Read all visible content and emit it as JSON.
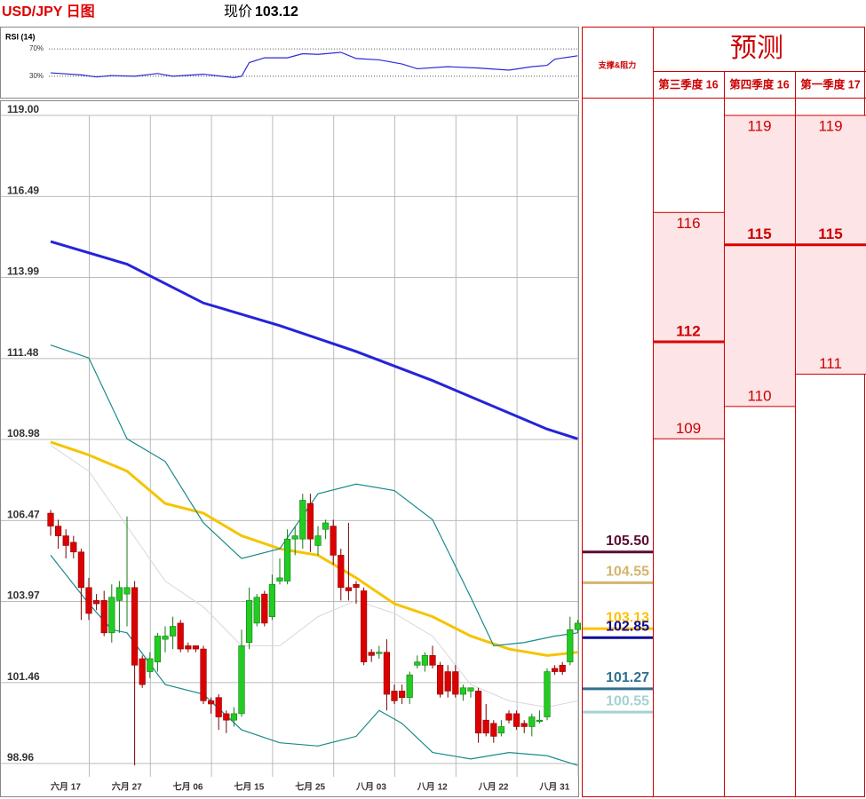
{
  "header": {
    "title": "USD/JPY 日图",
    "price_label": "现价",
    "price": "103.12"
  },
  "chart_data": [
    {
      "type": "candlestick",
      "categories": [
        "六月 17",
        null,
        null,
        null,
        null,
        null,
        null,
        null,
        "六月 27",
        null,
        null,
        null,
        null,
        null,
        null,
        null,
        "七月 06",
        null,
        null,
        null,
        null,
        null,
        null,
        null,
        "七月 15",
        null,
        null,
        null,
        null,
        null,
        null,
        null,
        "七月 25",
        null,
        null,
        null,
        null,
        null,
        null,
        null,
        "八月 03",
        null,
        null,
        null,
        null,
        null,
        null,
        null,
        "八月 12",
        null,
        null,
        null,
        null,
        null,
        null,
        null,
        "八月 22",
        null,
        null,
        null,
        null,
        null,
        null,
        null,
        "八月 31",
        null,
        null,
        null,
        null,
        null
      ],
      "open": [
        106.7,
        106.3,
        106.0,
        105.8,
        105.5,
        104.4,
        104.0,
        104.0,
        103.0,
        104.0,
        104.2,
        104.4,
        102.2,
        101.8,
        102.1,
        102.8,
        102.9,
        103.3,
        102.6,
        102.6,
        102.5,
        100.9,
        101.0,
        100.5,
        100.3,
        100.5,
        102.7,
        103.3,
        104.2,
        103.5,
        104.6,
        104.6,
        105.9,
        105.9,
        107.0,
        105.7,
        106.2,
        106.3,
        105.4,
        104.4,
        104.5,
        104.3,
        102.4,
        102.4,
        102.4,
        101.2,
        101.2,
        101.0,
        102.0,
        102.0,
        102.3,
        102.0,
        101.8,
        101.8,
        101.1,
        101.2,
        101.2,
        100.3,
        100.2,
        99.9,
        100.5,
        100.5,
        100.2,
        100.1,
        100.3,
        100.4,
        101.9,
        102.0,
        102.1,
        103.1
      ],
      "high": [
        106.8,
        106.5,
        106.2,
        106.0,
        105.6,
        104.7,
        104.2,
        104.3,
        104.5,
        104.6,
        106.6,
        104.6,
        102.3,
        102.4,
        103.0,
        103.2,
        103.5,
        103.4,
        102.7,
        102.6,
        102.6,
        101.0,
        101.1,
        100.6,
        100.7,
        103.1,
        104.4,
        104.2,
        104.3,
        104.8,
        105.3,
        106.2,
        106.3,
        107.3,
        107.3,
        106.3,
        106.5,
        106.5,
        105.6,
        106.4,
        104.6,
        104.4,
        102.5,
        102.6,
        102.8,
        101.4,
        101.4,
        101.8,
        102.3,
        102.4,
        102.6,
        102.1,
        102.0,
        102.0,
        101.4,
        101.3,
        101.3,
        100.8,
        100.3,
        100.3,
        100.6,
        100.6,
        100.3,
        100.5,
        100.6,
        101.9,
        102.0,
        102.1,
        103.5,
        103.4
      ],
      "low": [
        106.0,
        105.6,
        105.3,
        105.3,
        103.4,
        103.4,
        103.7,
        102.9,
        102.7,
        103.0,
        103.2,
        98.9,
        101.3,
        101.6,
        101.8,
        102.4,
        102.5,
        102.4,
        102.4,
        102.4,
        100.8,
        100.5,
        100.0,
        99.9,
        100.1,
        100.4,
        102.5,
        103.2,
        103.2,
        103.4,
        104.5,
        104.5,
        105.4,
        105.6,
        105.5,
        105.4,
        105.9,
        105.1,
        104.0,
        104.0,
        103.9,
        102.0,
        102.1,
        102.2,
        100.6,
        100.8,
        100.8,
        100.8,
        101.9,
        101.8,
        101.9,
        101.0,
        101.0,
        101.0,
        100.9,
        101.0,
        99.6,
        99.8,
        99.6,
        99.8,
        100.2,
        100.0,
        99.9,
        99.8,
        100.2,
        100.3,
        101.7,
        101.7,
        102.0,
        103.0
      ],
      "close": [
        106.3,
        106.0,
        105.7,
        105.5,
        104.4,
        103.6,
        103.9,
        103.0,
        104.1,
        104.4,
        104.4,
        102.0,
        101.4,
        102.2,
        102.9,
        102.9,
        103.2,
        102.5,
        102.5,
        102.5,
        100.9,
        100.8,
        100.4,
        100.3,
        100.5,
        102.6,
        104.0,
        104.1,
        103.3,
        104.5,
        104.7,
        105.9,
        106.0,
        107.1,
        105.9,
        106.0,
        106.4,
        105.4,
        104.4,
        104.3,
        104.4,
        102.1,
        102.3,
        102.4,
        101.1,
        100.9,
        101.0,
        101.7,
        102.1,
        102.3,
        102.0,
        101.1,
        101.2,
        101.1,
        101.3,
        101.3,
        99.9,
        99.9,
        99.8,
        100.1,
        100.3,
        100.1,
        100.1,
        100.4,
        100.3,
        101.8,
        101.8,
        101.8,
        103.1,
        103.3
      ],
      "up_color": "#22cc22",
      "down_color": "#dd0000",
      "ylim": [
        98.96,
        119
      ],
      "yticks": [
        98.96,
        101.46,
        103.97,
        106.47,
        108.98,
        111.48,
        113.99,
        116.49,
        {
          "value": 119,
          "label": "119.00"
        }
      ],
      "grid": true,
      "lines": [
        {
          "color": "#2424d8",
          "width": 3,
          "x": [
            0,
            10,
            20,
            30,
            40,
            50,
            60,
            65,
            69
          ],
          "values": [
            115.1,
            114.4,
            113.2,
            112.5,
            111.7,
            110.8,
            109.8,
            109.3,
            109.0
          ]
        },
        {
          "color": "#f5c400",
          "width": 3,
          "x": [
            0,
            5,
            10,
            15,
            20,
            25,
            30,
            35,
            40,
            45,
            50,
            55,
            60,
            65,
            69
          ],
          "values": [
            108.9,
            108.5,
            108.0,
            107.0,
            106.7,
            106.0,
            105.6,
            105.4,
            104.7,
            103.9,
            103.5,
            102.9,
            102.5,
            102.3,
            102.4
          ]
        },
        {
          "color": "#1a8a8a",
          "width": 1.2,
          "x": [
            0,
            5,
            10,
            15,
            20,
            25,
            30,
            35,
            40,
            45,
            50,
            55,
            58,
            62,
            66,
            69
          ],
          "values": [
            111.9,
            111.5,
            109.0,
            108.3,
            106.4,
            105.3,
            105.6,
            107.3,
            107.6,
            107.4,
            106.5,
            104.1,
            102.6,
            102.7,
            102.9,
            103.0
          ]
        },
        {
          "color": "#1a8a8a",
          "width": 1.2,
          "x": [
            0,
            5,
            8,
            10,
            15,
            20,
            25,
            30,
            35,
            40,
            43,
            46,
            50,
            55,
            60,
            65,
            69
          ],
          "values": [
            105.4,
            103.9,
            103.1,
            103.0,
            101.4,
            101.1,
            100.0,
            99.6,
            99.5,
            99.8,
            100.6,
            100.2,
            99.3,
            99.1,
            99.3,
            99.2,
            98.9
          ]
        },
        {
          "color": "#d8d8d8",
          "width": 1,
          "x": [
            0,
            5,
            10,
            15,
            20,
            25,
            30,
            35,
            40,
            45,
            50,
            55,
            60,
            65,
            69
          ],
          "values": [
            108.8,
            108.0,
            106.3,
            104.6,
            103.8,
            102.6,
            102.6,
            103.5,
            104.0,
            103.6,
            102.9,
            101.4,
            100.9,
            100.7,
            100.9
          ]
        }
      ]
    },
    {
      "type": "line",
      "title": "RSI (14)",
      "color": "#2b2bd6",
      "x": [
        0,
        4,
        6,
        8,
        11,
        14,
        16,
        20,
        24,
        25,
        26,
        28,
        31,
        33,
        35,
        38,
        40,
        43,
        46,
        48,
        52,
        56,
        60,
        63,
        65,
        66,
        69
      ],
      "values": [
        35,
        32,
        29,
        31,
        30,
        34,
        30,
        33,
        28,
        30,
        50,
        57,
        57,
        63,
        62,
        65,
        56,
        54,
        48,
        41,
        44,
        42,
        39,
        44,
        46,
        55,
        60
      ],
      "ylim": [
        0,
        100
      ],
      "yticks": [
        {
          "value": 30,
          "label": "30%"
        },
        {
          "value": 70,
          "label": "70%"
        }
      ]
    }
  ],
  "support_resistance": {
    "header": "支撑&阻力",
    "levels": [
      {
        "value": 105.5,
        "label": "105.50",
        "color": "#5c0a30"
      },
      {
        "value": 104.55,
        "label": "104.55",
        "color": "#d4b46e"
      },
      {
        "value": 103.13,
        "label": "103.13",
        "color": "#ffc000"
      },
      {
        "value": 102.85,
        "label": "102.85",
        "color": "#0a0a9a"
      },
      {
        "value": 101.27,
        "label": "101.27",
        "color": "#2f6f8f"
      },
      {
        "value": 100.55,
        "label": "100.55",
        "color": "#a6d2d2"
      }
    ]
  },
  "forecast": {
    "title": "预测",
    "quarters": [
      {
        "name": "第三季度 16",
        "high": 116,
        "mid": 112,
        "low": 109
      },
      {
        "name": "第四季度 16",
        "high": 119,
        "mid": 115,
        "low": 110
      },
      {
        "name": "第一季度 17",
        "high": 119,
        "mid": 115,
        "low": 111
      }
    ]
  }
}
